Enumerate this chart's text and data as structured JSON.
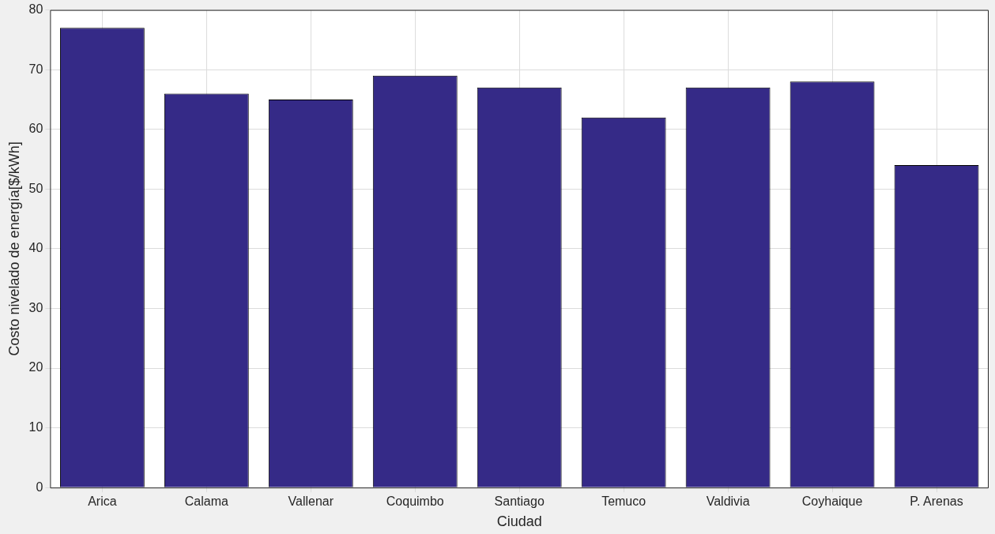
{
  "chart_data": {
    "type": "bar",
    "xlabel": "Ciudad",
    "ylabel": "Costo nivelado de energía[$/kWh]",
    "categories": [
      "Arica",
      "Calama",
      "Vallenar",
      "Coquimbo",
      "Santiago",
      "Temuco",
      "Valdivia",
      "Coyhaique",
      "P. Arenas"
    ],
    "values": [
      77,
      66,
      65,
      69,
      67,
      62,
      67,
      68,
      54
    ],
    "color": "#352a87",
    "ylim": [
      0,
      80
    ],
    "yticks": [
      0,
      10,
      20,
      30,
      40,
      50,
      60,
      70,
      80
    ],
    "grid": true
  }
}
